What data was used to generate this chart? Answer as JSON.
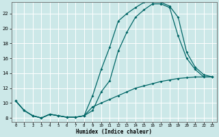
{
  "xlabel": "Humidex (Indice chaleur)",
  "bg_color": "#cce8e8",
  "grid_color": "#ffffff",
  "line_color": "#006666",
  "xlim": [
    -0.5,
    23.5
  ],
  "ylim": [
    7.5,
    23.5
  ],
  "xticks": [
    0,
    1,
    2,
    3,
    4,
    5,
    6,
    7,
    8,
    9,
    10,
    11,
    12,
    13,
    14,
    15,
    16,
    17,
    18,
    19,
    20,
    21,
    22,
    23
  ],
  "yticks": [
    8,
    10,
    12,
    14,
    16,
    18,
    20,
    22
  ],
  "line1_x": [
    0,
    1,
    2,
    3,
    4,
    5,
    6,
    7,
    8,
    9,
    10,
    11,
    12,
    13,
    14,
    15,
    16,
    17,
    18,
    19,
    20,
    21,
    22,
    23
  ],
  "line1_y": [
    10.3,
    9.0,
    8.3,
    8.0,
    8.5,
    8.3,
    8.1,
    8.1,
    8.3,
    9.0,
    11.5,
    13.0,
    17.0,
    19.5,
    21.5,
    22.5,
    23.3,
    23.3,
    22.8,
    19.0,
    16.0,
    14.5,
    13.5,
    13.5
  ],
  "line2_x": [
    0,
    1,
    2,
    3,
    4,
    5,
    6,
    7,
    8,
    9,
    10,
    11,
    12,
    13,
    14,
    15,
    16,
    17,
    18,
    19,
    20,
    21,
    22,
    23
  ],
  "line2_y": [
    10.3,
    9.0,
    8.3,
    8.0,
    8.5,
    8.3,
    8.1,
    8.1,
    8.3,
    11.0,
    14.5,
    17.5,
    21.0,
    22.0,
    22.8,
    23.5,
    23.5,
    23.5,
    23.0,
    21.5,
    16.8,
    14.8,
    13.8,
    13.5
  ],
  "line3_x": [
    0,
    1,
    2,
    3,
    4,
    5,
    6,
    7,
    8,
    9,
    10,
    11,
    12,
    13,
    14,
    15,
    16,
    17,
    18,
    19,
    20,
    21,
    22,
    23
  ],
  "line3_y": [
    10.3,
    9.0,
    8.3,
    8.0,
    8.5,
    8.3,
    8.1,
    8.1,
    8.3,
    9.5,
    10.0,
    10.5,
    11.0,
    11.5,
    12.0,
    12.3,
    12.6,
    12.9,
    13.1,
    13.3,
    13.4,
    13.5,
    13.5,
    13.5
  ]
}
